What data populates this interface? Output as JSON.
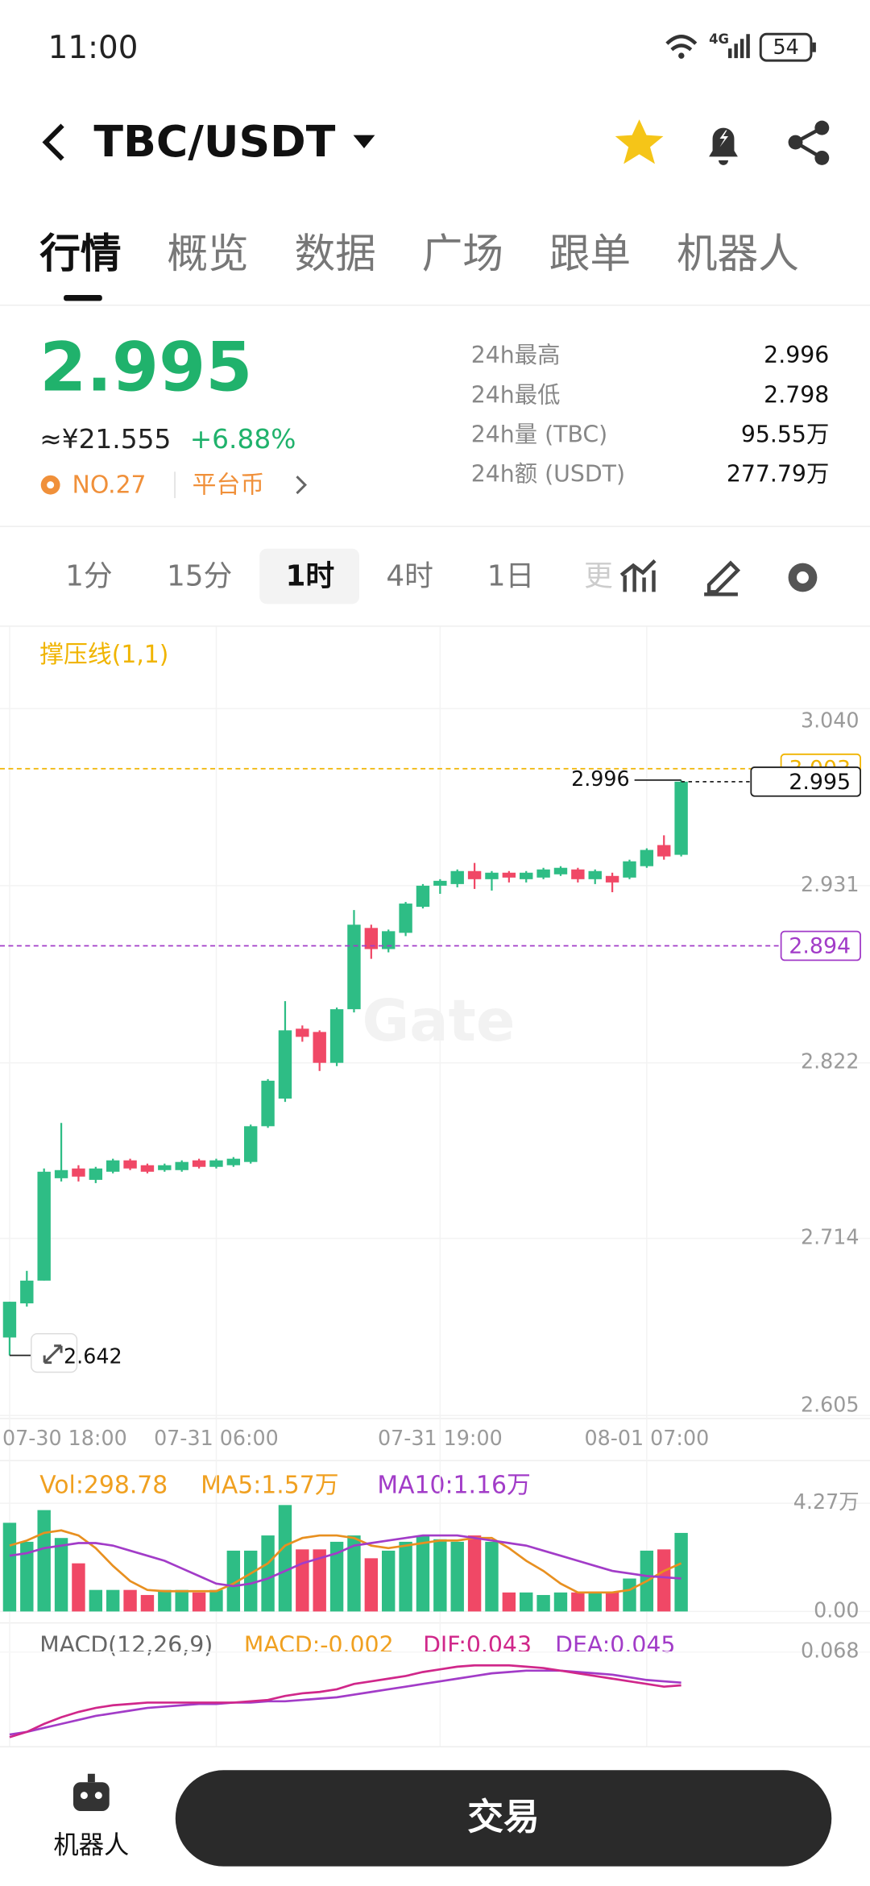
{
  "status_bar": {
    "time": "11:00",
    "network": "4G",
    "battery": "54"
  },
  "header": {
    "pair": "TBC/USDT"
  },
  "tabs": [
    "行情",
    "概览",
    "数据",
    "广场",
    "跟单",
    "机器人"
  ],
  "ticker": {
    "price": "2.995",
    "cny": "≈¥21.555",
    "change": "+6.88%",
    "rank": "NO.27",
    "tag": "平台币",
    "stats": [
      {
        "label": "24h最高",
        "value": "2.996"
      },
      {
        "label": "24h最低",
        "value": "2.798"
      },
      {
        "label": "24h量 (TBC)",
        "value": "95.55万"
      },
      {
        "label": "24h额 (USDT)",
        "value": "277.79万"
      }
    ]
  },
  "intervals": [
    "1分",
    "15分",
    "1时",
    "4时",
    "1日",
    "更"
  ],
  "chart": {
    "indicator": "撑压线(1,1)",
    "watermark": "Gate",
    "ylim": [
      2.605,
      3.04
    ],
    "yticks": [
      {
        "value": 3.04,
        "label": "3.040"
      },
      {
        "value": 2.931,
        "label": "2.931"
      },
      {
        "value": 2.822,
        "label": "2.822"
      },
      {
        "value": 2.714,
        "label": "2.714"
      },
      {
        "value": 2.605,
        "label": "2.605"
      }
    ],
    "xticks": [
      {
        "value": 0,
        "label": "07-30 18:00"
      },
      {
        "value": 12,
        "label": "07-31 06:00"
      },
      {
        "value": 25,
        "label": "07-31 19:00"
      },
      {
        "value": 37,
        "label": "08-01 07:00"
      }
    ],
    "resistance": {
      "value": 3.003,
      "label": "3.003"
    },
    "support": {
      "value": 2.894,
      "label": "2.894"
    },
    "current": {
      "value": 2.995,
      "label": "2.995"
    },
    "high_mark": {
      "value": 2.996,
      "label": "2.996"
    },
    "low_mark": {
      "value": 2.642,
      "label": "2.642"
    },
    "candles": [
      {
        "o": 2.653,
        "h": 2.675,
        "l": 2.642,
        "c": 2.675
      },
      {
        "o": 2.674,
        "h": 2.694,
        "l": 2.672,
        "c": 2.688
      },
      {
        "o": 2.688,
        "h": 2.757,
        "l": 2.688,
        "c": 2.755
      },
      {
        "o": 2.751,
        "h": 2.785,
        "l": 2.749,
        "c": 2.756
      },
      {
        "o": 2.757,
        "h": 2.759,
        "l": 2.749,
        "c": 2.752
      },
      {
        "o": 2.75,
        "h": 2.758,
        "l": 2.748,
        "c": 2.757
      },
      {
        "o": 2.755,
        "h": 2.763,
        "l": 2.754,
        "c": 2.762
      },
      {
        "o": 2.762,
        "h": 2.763,
        "l": 2.756,
        "c": 2.757
      },
      {
        "o": 2.759,
        "h": 2.76,
        "l": 2.754,
        "c": 2.755
      },
      {
        "o": 2.756,
        "h": 2.76,
        "l": 2.755,
        "c": 2.759
      },
      {
        "o": 2.756,
        "h": 2.762,
        "l": 2.755,
        "c": 2.761
      },
      {
        "o": 2.762,
        "h": 2.763,
        "l": 2.757,
        "c": 2.758
      },
      {
        "o": 2.758,
        "h": 2.763,
        "l": 2.757,
        "c": 2.762
      },
      {
        "o": 2.759,
        "h": 2.764,
        "l": 2.758,
        "c": 2.763
      },
      {
        "o": 2.761,
        "h": 2.784,
        "l": 2.76,
        "c": 2.783
      },
      {
        "o": 2.783,
        "h": 2.812,
        "l": 2.782,
        "c": 2.811
      },
      {
        "o": 2.8,
        "h": 2.86,
        "l": 2.798,
        "c": 2.842
      },
      {
        "o": 2.843,
        "h": 2.845,
        "l": 2.835,
        "c": 2.838
      },
      {
        "o": 2.841,
        "h": 2.842,
        "l": 2.817,
        "c": 2.822
      },
      {
        "o": 2.822,
        "h": 2.856,
        "l": 2.82,
        "c": 2.855
      },
      {
        "o": 2.855,
        "h": 2.916,
        "l": 2.853,
        "c": 2.907
      },
      {
        "o": 2.905,
        "h": 2.907,
        "l": 2.886,
        "c": 2.892
      },
      {
        "o": 2.892,
        "h": 2.904,
        "l": 2.89,
        "c": 2.903
      },
      {
        "o": 2.902,
        "h": 2.921,
        "l": 2.9,
        "c": 2.92
      },
      {
        "o": 2.918,
        "h": 2.932,
        "l": 2.917,
        "c": 2.931
      },
      {
        "o": 2.931,
        "h": 2.935,
        "l": 2.926,
        "c": 2.934
      },
      {
        "o": 2.932,
        "h": 2.941,
        "l": 2.93,
        "c": 2.94
      },
      {
        "o": 2.94,
        "h": 2.945,
        "l": 2.929,
        "c": 2.935
      },
      {
        "o": 2.935,
        "h": 2.94,
        "l": 2.928,
        "c": 2.939
      },
      {
        "o": 2.939,
        "h": 2.94,
        "l": 2.933,
        "c": 2.936
      },
      {
        "o": 2.935,
        "h": 2.94,
        "l": 2.933,
        "c": 2.939
      },
      {
        "o": 2.936,
        "h": 2.942,
        "l": 2.935,
        "c": 2.941
      },
      {
        "o": 2.938,
        "h": 2.943,
        "l": 2.937,
        "c": 2.942
      },
      {
        "o": 2.941,
        "h": 2.942,
        "l": 2.933,
        "c": 2.935
      },
      {
        "o": 2.935,
        "h": 2.941,
        "l": 2.932,
        "c": 2.94
      },
      {
        "o": 2.937,
        "h": 2.939,
        "l": 2.927,
        "c": 2.933
      },
      {
        "o": 2.936,
        "h": 2.947,
        "l": 2.935,
        "c": 2.946
      },
      {
        "o": 2.943,
        "h": 2.954,
        "l": 2.942,
        "c": 2.953
      },
      {
        "o": 2.956,
        "h": 2.962,
        "l": 2.947,
        "c": 2.949
      },
      {
        "o": 2.95,
        "h": 2.996,
        "l": 2.949,
        "c": 2.995
      }
    ]
  },
  "volume": {
    "vol_label": "Vol:298.78",
    "ma5_label": "MA5:1.57万",
    "ma10_label": "MA10:1.16万",
    "ylim": [
      0,
      4.27
    ],
    "yticks": [
      {
        "value": 4.27,
        "label": "4.27万"
      },
      {
        "value": 0,
        "label": "0.00"
      }
    ],
    "values": [
      3.5,
      2.75,
      4.0,
      2.9,
      1.9,
      0.85,
      0.85,
      0.85,
      0.65,
      0.85,
      0.85,
      0.75,
      0.85,
      2.4,
      2.4,
      3.0,
      4.2,
      2.45,
      2.45,
      2.75,
      3.0,
      2.1,
      2.4,
      2.75,
      3.0,
      2.85,
      2.75,
      3.0,
      2.75,
      0.75,
      0.75,
      0.65,
      0.75,
      0.75,
      0.75,
      0.75,
      1.3,
      2.4,
      2.45,
      3.1
    ],
    "ma5": [
      2.6,
      2.8,
      3.1,
      3.2,
      3.0,
      2.5,
      1.8,
      1.2,
      0.85,
      0.8,
      0.8,
      0.8,
      0.8,
      1.1,
      1.5,
      1.9,
      2.6,
      2.9,
      3.0,
      3.0,
      2.9,
      2.6,
      2.5,
      2.6,
      2.7,
      2.8,
      2.8,
      2.9,
      2.9,
      2.5,
      2.0,
      1.6,
      1.1,
      0.75,
      0.75,
      0.75,
      0.85,
      1.2,
      1.6,
      1.9
    ],
    "ma10": [
      2.2,
      2.3,
      2.5,
      2.6,
      2.7,
      2.7,
      2.6,
      2.4,
      2.2,
      2.0,
      1.7,
      1.4,
      1.1,
      1.0,
      1.1,
      1.3,
      1.6,
      1.9,
      2.1,
      2.3,
      2.6,
      2.7,
      2.8,
      2.9,
      3.0,
      3.0,
      3.0,
      2.9,
      2.8,
      2.7,
      2.6,
      2.4,
      2.2,
      2.0,
      1.8,
      1.6,
      1.5,
      1.4,
      1.35,
      1.3
    ]
  },
  "macd": {
    "title": "MACD(12,26,9)",
    "macd_label": "MACD:-0.002",
    "dif_label": "DIF:0.043",
    "dea_label": "DEA:0.045",
    "ylim": [
      0,
      0.075
    ],
    "yticks": [
      {
        "value": 0.068,
        "label": "0.068"
      }
    ],
    "dif": [
      0.004,
      0.008,
      0.014,
      0.019,
      0.023,
      0.026,
      0.028,
      0.029,
      0.03,
      0.03,
      0.03,
      0.03,
      0.03,
      0.03,
      0.031,
      0.032,
      0.035,
      0.037,
      0.038,
      0.04,
      0.044,
      0.046,
      0.048,
      0.05,
      0.053,
      0.055,
      0.057,
      0.058,
      0.058,
      0.058,
      0.057,
      0.056,
      0.054,
      0.052,
      0.05,
      0.048,
      0.046,
      0.044,
      0.042,
      0.043
    ],
    "dea": [
      0.006,
      0.008,
      0.011,
      0.014,
      0.017,
      0.02,
      0.022,
      0.024,
      0.026,
      0.027,
      0.028,
      0.029,
      0.029,
      0.03,
      0.03,
      0.031,
      0.031,
      0.032,
      0.033,
      0.034,
      0.036,
      0.038,
      0.04,
      0.042,
      0.044,
      0.046,
      0.048,
      0.05,
      0.052,
      0.053,
      0.054,
      0.054,
      0.054,
      0.053,
      0.052,
      0.051,
      0.049,
      0.047,
      0.046,
      0.045
    ]
  },
  "bottom_bar": {
    "robot": "机器人",
    "trade": "交易"
  }
}
